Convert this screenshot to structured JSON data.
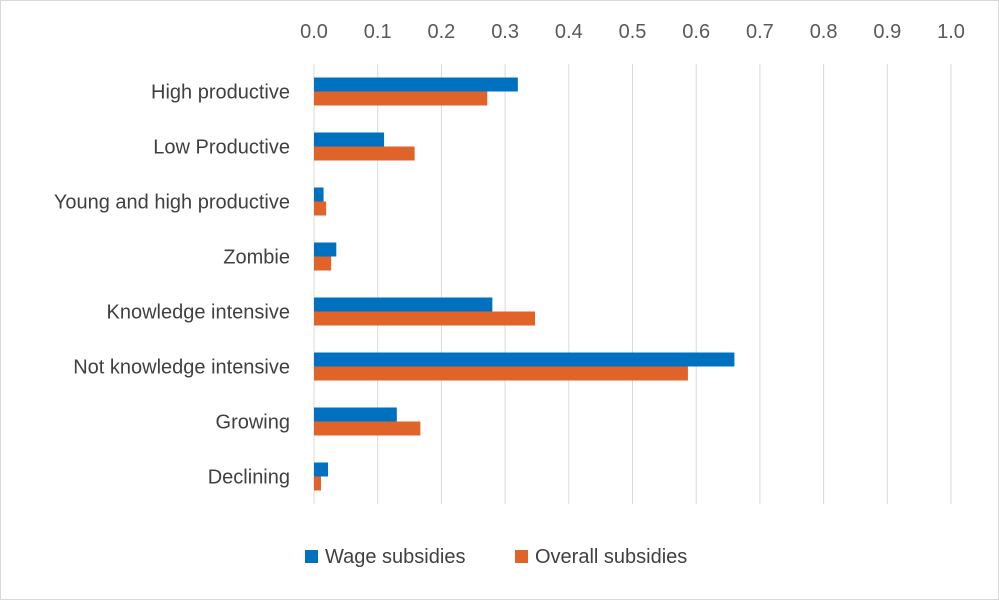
{
  "chart_data": {
    "type": "bar",
    "orientation": "horizontal",
    "categories": [
      "High productive",
      "Low Productive",
      "Young and high productive",
      "Zombie",
      "Knowledge intensive",
      "Not knowledge intensive",
      "Growing",
      "Declining"
    ],
    "series": [
      {
        "name": "Wage subsidies",
        "color": "#0070C0",
        "values": [
          0.32,
          0.11,
          0.015,
          0.035,
          0.28,
          0.66,
          0.13,
          0.022
        ]
      },
      {
        "name": "Overall subsidies",
        "color": "#E0632A",
        "values": [
          0.272,
          0.158,
          0.019,
          0.027,
          0.347,
          0.587,
          0.167,
          0.011
        ]
      }
    ],
    "x_ticks": [
      "0.0",
      "0.1",
      "0.2",
      "0.3",
      "0.4",
      "0.5",
      "0.6",
      "0.7",
      "0.8",
      "0.9",
      "1.0"
    ],
    "xlim": [
      0,
      1.0
    ],
    "grid": true,
    "legend_position": "bottom",
    "axis_position": "top"
  }
}
